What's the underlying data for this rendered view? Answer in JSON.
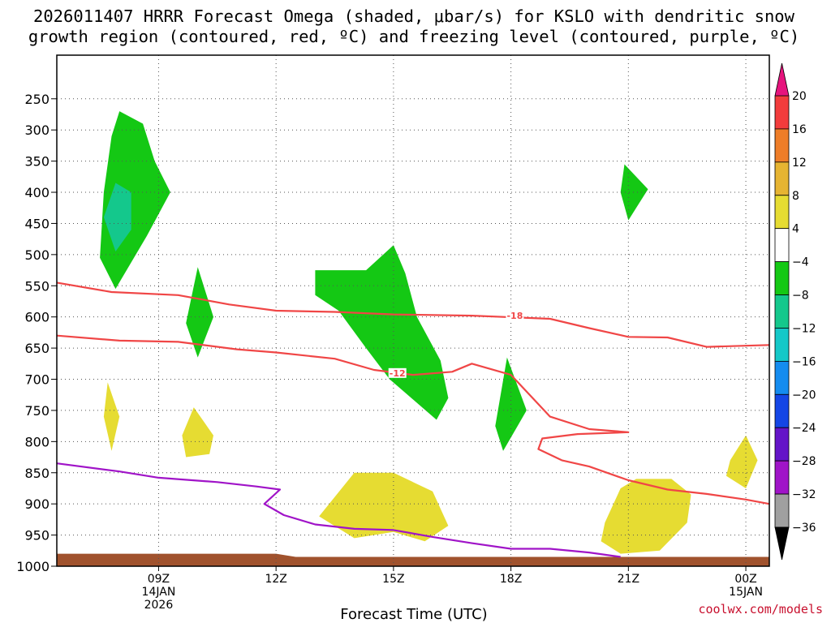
{
  "title": {
    "line1": "2026011407 HRRR Forecast Omega (shaded, μbar/s) for KSLO with dendritic snow",
    "line2": "growth region (contoured, red, ºC) and freezing level (contoured, purple, ºC)"
  },
  "credit": "coolwx.com/models",
  "chart_data": {
    "type": "heatmap",
    "xlabel": "Forecast Time (UTC)",
    "ylabel": "",
    "x_range_hours_utc": [
      6.4,
      24.6
    ],
    "y_range_mb": [
      1000,
      180
    ],
    "y_axis_direction": "pressure decreasing upward",
    "grid": true,
    "x_ticks": [
      {
        "hour": 9,
        "label": "09Z",
        "sub1": "14JAN",
        "sub2": "2026"
      },
      {
        "hour": 12,
        "label": "12Z",
        "sub1": "",
        "sub2": ""
      },
      {
        "hour": 15,
        "label": "15Z",
        "sub1": "",
        "sub2": ""
      },
      {
        "hour": 18,
        "label": "18Z",
        "sub1": "",
        "sub2": ""
      },
      {
        "hour": 21,
        "label": "21Z",
        "sub1": "",
        "sub2": ""
      },
      {
        "hour": 24,
        "label": "00Z",
        "sub1": "15JAN",
        "sub2": ""
      }
    ],
    "y_ticks": [
      250,
      300,
      350,
      400,
      450,
      500,
      550,
      600,
      650,
      700,
      750,
      800,
      850,
      900,
      950,
      1000
    ],
    "colorbar": {
      "levels": [
        "20",
        "16",
        "12",
        "8",
        "4",
        "−4",
        "−8",
        "−12",
        "−16",
        "−20",
        "−24",
        "−28",
        "−32",
        "−36"
      ],
      "colors": [
        "#f0145a",
        "#f23c3c",
        "#ee7d28",
        "#e6b432",
        "#e6dc32",
        "#ffffff",
        "#14c814",
        "#14c88c",
        "#14c8c8",
        "#148cf0",
        "#1446e6",
        "#6414c8",
        "#a014c8",
        "#a0a0a0",
        "#000000"
      ],
      "top_extend_color": "#e6147d",
      "bottom_extend_color": "#000000"
    },
    "shaded_regions": [
      {
        "name": "omega-green-upper-left",
        "fill": "#14c814",
        "points": [
          [
            8.0,
            270
          ],
          [
            8.6,
            290
          ],
          [
            8.9,
            350
          ],
          [
            9.3,
            400
          ],
          [
            8.7,
            470
          ],
          [
            7.9,
            555
          ],
          [
            7.5,
            505
          ],
          [
            7.6,
            400
          ],
          [
            7.8,
            310
          ]
        ]
      },
      {
        "name": "omega-teal-upper-left",
        "fill": "#14c88c",
        "points": [
          [
            7.9,
            385
          ],
          [
            8.3,
            400
          ],
          [
            8.3,
            460
          ],
          [
            7.9,
            495
          ],
          [
            7.6,
            440
          ]
        ]
      },
      {
        "name": "omega-green-small-10z",
        "fill": "#14c814",
        "points": [
          [
            10.0,
            520
          ],
          [
            10.4,
            600
          ],
          [
            10.0,
            665
          ],
          [
            9.7,
            610
          ]
        ]
      },
      {
        "name": "omega-green-mid",
        "fill": "#14c814",
        "points": [
          [
            13.0,
            525
          ],
          [
            14.3,
            525
          ],
          [
            15.0,
            485
          ],
          [
            15.3,
            530
          ],
          [
            15.6,
            600
          ],
          [
            16.2,
            670
          ],
          [
            16.4,
            730
          ],
          [
            16.1,
            765
          ],
          [
            14.9,
            700
          ],
          [
            14.3,
            650
          ],
          [
            13.6,
            590
          ],
          [
            13.0,
            565
          ]
        ]
      },
      {
        "name": "omega-green-small-18z",
        "fill": "#14c814",
        "points": [
          [
            17.9,
            665
          ],
          [
            18.4,
            750
          ],
          [
            17.8,
            815
          ],
          [
            17.6,
            775
          ]
        ]
      },
      {
        "name": "omega-green-small-21z",
        "fill": "#14c814",
        "points": [
          [
            20.9,
            355
          ],
          [
            21.5,
            395
          ],
          [
            21.0,
            445
          ],
          [
            20.8,
            400
          ]
        ]
      },
      {
        "name": "omega-yellow-a",
        "fill": "#e6dc32",
        "points": [
          [
            7.7,
            705
          ],
          [
            8.0,
            760
          ],
          [
            7.8,
            815
          ],
          [
            7.6,
            760
          ]
        ]
      },
      {
        "name": "omega-yellow-b",
        "fill": "#e6dc32",
        "points": [
          [
            9.9,
            745
          ],
          [
            10.4,
            790
          ],
          [
            10.3,
            820
          ],
          [
            9.7,
            825
          ],
          [
            9.6,
            790
          ]
        ]
      },
      {
        "name": "omega-yellow-c",
        "fill": "#e6dc32",
        "points": [
          [
            13.1,
            920
          ],
          [
            14.0,
            850
          ],
          [
            15.0,
            850
          ],
          [
            16.0,
            880
          ],
          [
            16.4,
            935
          ],
          [
            15.8,
            960
          ],
          [
            15.0,
            945
          ],
          [
            14.0,
            955
          ]
        ]
      },
      {
        "name": "omega-yellow-d",
        "fill": "#e6dc32",
        "points": [
          [
            20.4,
            930
          ],
          [
            20.8,
            875
          ],
          [
            21.2,
            860
          ],
          [
            22.1,
            860
          ],
          [
            22.6,
            885
          ],
          [
            22.5,
            930
          ],
          [
            21.8,
            975
          ],
          [
            20.8,
            980
          ],
          [
            20.3,
            960
          ]
        ]
      },
      {
        "name": "omega-yellow-e",
        "fill": "#e6dc32",
        "points": [
          [
            23.6,
            830
          ],
          [
            24.0,
            790
          ],
          [
            24.3,
            830
          ],
          [
            24.0,
            875
          ],
          [
            23.5,
            855
          ]
        ]
      }
    ],
    "contours": [
      {
        "name": "dgz-contour-minus18",
        "color": "#f04646",
        "label": "-18",
        "label_at": [
          18.1,
          598
        ],
        "points": [
          [
            6.4,
            545
          ],
          [
            7.8,
            560
          ],
          [
            9.5,
            565
          ],
          [
            10.8,
            580
          ],
          [
            12.0,
            590
          ],
          [
            13.5,
            592
          ],
          [
            15.0,
            596
          ],
          [
            17.0,
            598
          ],
          [
            19.0,
            603
          ],
          [
            20.0,
            618
          ],
          [
            21.0,
            632
          ],
          [
            22.0,
            633
          ],
          [
            23.0,
            648
          ],
          [
            24.6,
            645
          ]
        ]
      },
      {
        "name": "dgz-contour-minus12",
        "color": "#f04646",
        "label": "-12",
        "label_at": [
          15.1,
          690
        ],
        "points": [
          [
            6.4,
            630
          ],
          [
            8.0,
            638
          ],
          [
            9.5,
            640
          ],
          [
            11.0,
            652
          ],
          [
            12.0,
            657
          ],
          [
            13.5,
            667
          ],
          [
            14.5,
            685
          ],
          [
            15.5,
            693
          ],
          [
            16.5,
            688
          ],
          [
            17.0,
            675
          ],
          [
            18.0,
            693
          ],
          [
            19.0,
            760
          ],
          [
            20.0,
            780
          ],
          [
            21.0,
            785
          ],
          [
            19.7,
            788
          ],
          [
            18.8,
            795
          ],
          [
            18.7,
            812
          ],
          [
            19.3,
            830
          ],
          [
            20.0,
            840
          ],
          [
            21.0,
            862
          ],
          [
            22.0,
            877
          ],
          [
            23.0,
            884
          ],
          [
            24.0,
            893
          ],
          [
            24.6,
            900
          ]
        ]
      },
      {
        "name": "freezing-level-contour",
        "color": "#a014c8",
        "label": "",
        "label_at": null,
        "points": [
          [
            6.4,
            835
          ],
          [
            8.0,
            848
          ],
          [
            9.0,
            858
          ],
          [
            10.5,
            865
          ],
          [
            11.5,
            872
          ],
          [
            12.1,
            877
          ],
          [
            11.7,
            900
          ],
          [
            12.2,
            918
          ],
          [
            13.0,
            933
          ],
          [
            14.0,
            940
          ],
          [
            15.0,
            942
          ],
          [
            16.0,
            953
          ],
          [
            17.0,
            963
          ],
          [
            18.0,
            972
          ],
          [
            19.0,
            972
          ],
          [
            20.0,
            978
          ],
          [
            20.8,
            985
          ]
        ]
      }
    ],
    "terrain": {
      "fill": "#a0522d",
      "points": [
        [
          6.4,
          980
        ],
        [
          12.0,
          980
        ],
        [
          12.5,
          985
        ],
        [
          24.6,
          985
        ]
      ]
    }
  }
}
